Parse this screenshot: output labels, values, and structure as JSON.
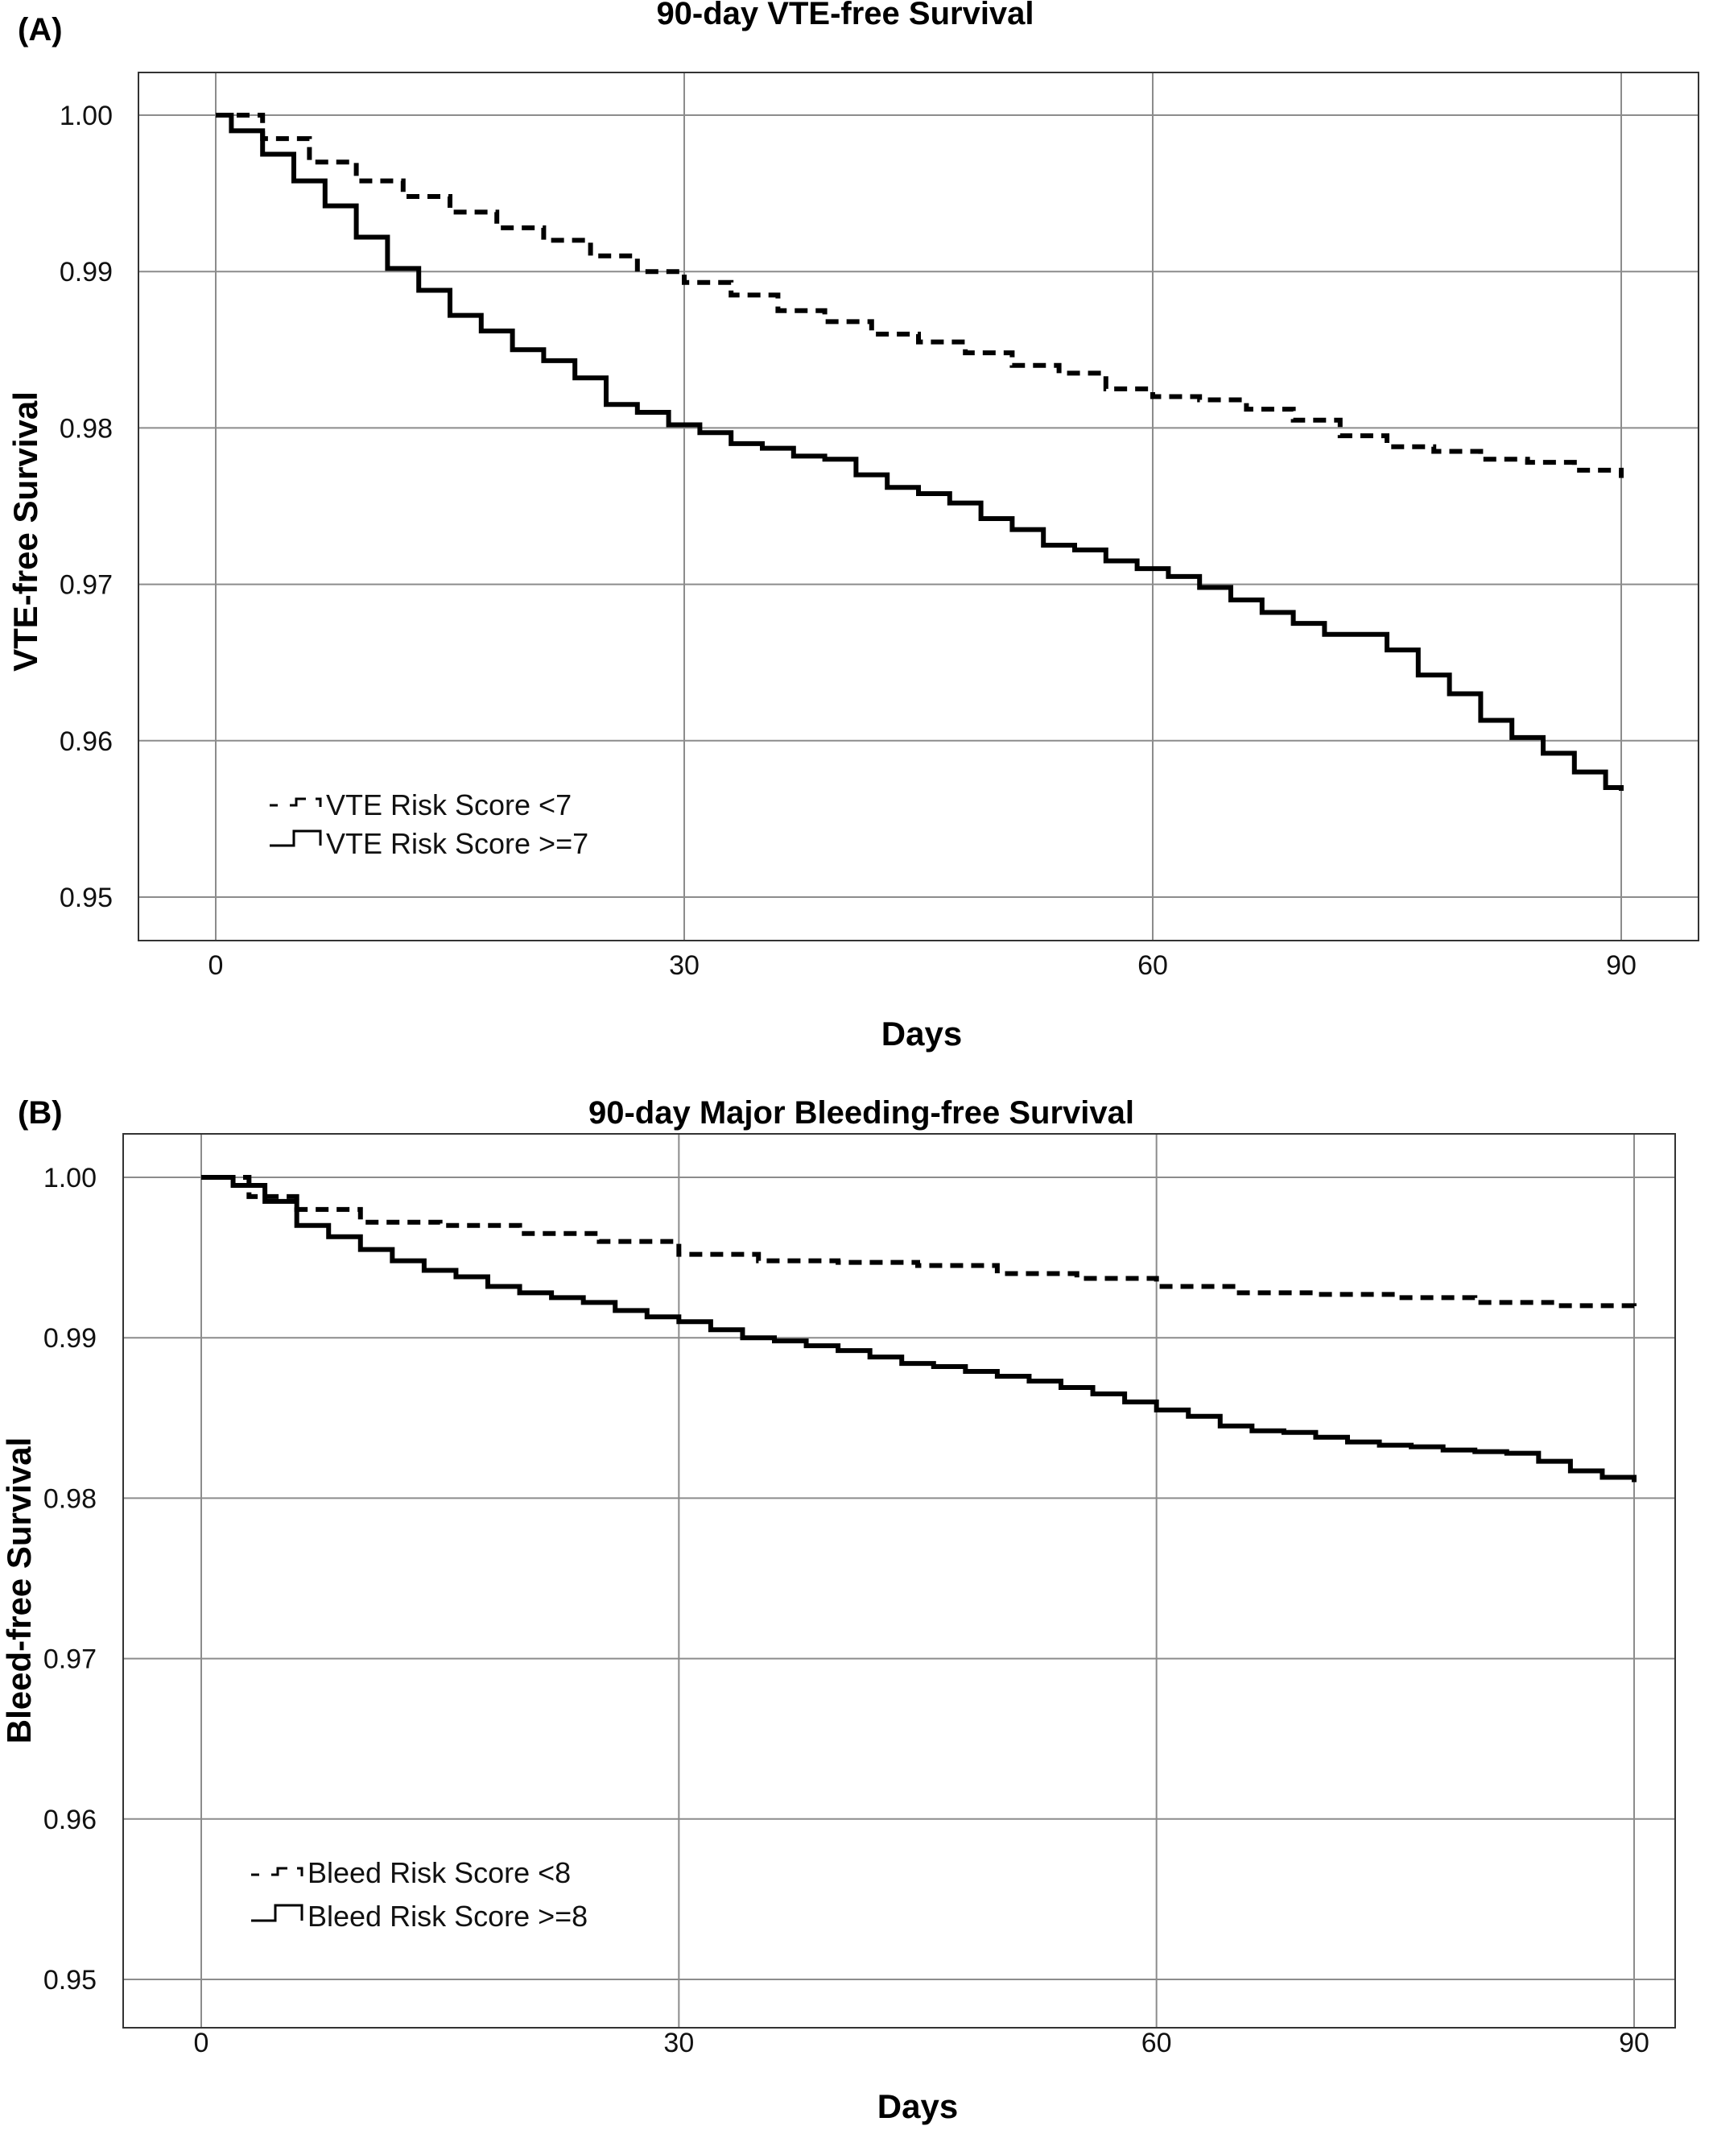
{
  "figure": {
    "panels": [
      {
        "tag": "(A)",
        "title": "90-day VTE-free Survival",
        "xlabel": "Days",
        "ylabel": "VTE-free Survival",
        "x_ticks": [
          "0",
          "30",
          "60",
          "90"
        ],
        "y_ticks": [
          "1.00",
          "0.99",
          "0.98",
          "0.97",
          "0.96",
          "0.95"
        ],
        "legend": [
          {
            "label": "VTE Risk Score <7",
            "style": "dashed"
          },
          {
            "label": "VTE Risk Score >=7",
            "style": "solid"
          }
        ]
      },
      {
        "tag": "(B)",
        "title": "90-day Major Bleeding-free Survival",
        "xlabel": "Days",
        "ylabel": "Bleed-free Survival",
        "x_ticks": [
          "0",
          "30",
          "60",
          "90"
        ],
        "y_ticks": [
          "1.00",
          "0.99",
          "0.98",
          "0.97",
          "0.96",
          "0.95"
        ],
        "legend": [
          {
            "label": "Bleed Risk Score <8",
            "style": "dashed"
          },
          {
            "label": "Bleed Risk Score >=8",
            "style": "solid"
          }
        ]
      }
    ]
  },
  "chart_data": [
    {
      "type": "line",
      "step": true,
      "title": "90-day VTE-free Survival",
      "xlabel": "Days",
      "ylabel": "VTE-free Survival",
      "xlim": [
        0,
        90
      ],
      "ylim": [
        0.95,
        1.0
      ],
      "grid": true,
      "legend_position": "bottom-left",
      "series": [
        {
          "name": "VTE Risk Score <7",
          "style": "dashed",
          "color": "#000000",
          "x": [
            0,
            3,
            6,
            9,
            12,
            15,
            18,
            21,
            24,
            27,
            30,
            33,
            36,
            39,
            42,
            45,
            48,
            51,
            54,
            57,
            60,
            63,
            66,
            69,
            72,
            75,
            78,
            81,
            84,
            87,
            90
          ],
          "y": [
            1.0,
            0.9985,
            0.997,
            0.9958,
            0.9948,
            0.9938,
            0.9928,
            0.992,
            0.991,
            0.99,
            0.9893,
            0.9885,
            0.9875,
            0.9868,
            0.986,
            0.9855,
            0.9848,
            0.984,
            0.9835,
            0.9825,
            0.982,
            0.9818,
            0.9812,
            0.9805,
            0.9795,
            0.9788,
            0.9785,
            0.978,
            0.9778,
            0.9773,
            0.9768
          ]
        },
        {
          "name": "VTE Risk Score >=7",
          "style": "solid",
          "color": "#000000",
          "x": [
            0,
            1,
            3,
            5,
            7,
            9,
            11,
            13,
            15,
            17,
            19,
            21,
            23,
            25,
            27,
            29,
            31,
            33,
            35,
            37,
            39,
            41,
            43,
            45,
            47,
            49,
            51,
            53,
            55,
            57,
            59,
            61,
            63,
            65,
            67,
            69,
            71,
            73,
            75,
            77,
            79,
            81,
            83,
            85,
            87,
            89,
            90
          ],
          "y": [
            1.0,
            0.999,
            0.9975,
            0.9958,
            0.9942,
            0.9922,
            0.9902,
            0.9888,
            0.9872,
            0.9862,
            0.985,
            0.9843,
            0.9832,
            0.9815,
            0.981,
            0.9802,
            0.9797,
            0.979,
            0.9787,
            0.9782,
            0.978,
            0.977,
            0.9762,
            0.9758,
            0.9752,
            0.9742,
            0.9735,
            0.9725,
            0.9722,
            0.9715,
            0.971,
            0.9705,
            0.9698,
            0.969,
            0.9682,
            0.9675,
            0.9668,
            0.9668,
            0.9658,
            0.9642,
            0.963,
            0.9613,
            0.9602,
            0.9592,
            0.958,
            0.957,
            0.9568
          ]
        }
      ]
    },
    {
      "type": "line",
      "step": true,
      "title": "90-day Major Bleeding-free Survival",
      "xlabel": "Days",
      "ylabel": "Bleed-free Survival",
      "xlim": [
        0,
        90
      ],
      "ylim": [
        0.95,
        1.0
      ],
      "grid": true,
      "legend_position": "bottom-left",
      "series": [
        {
          "name": "Bleed Risk Score <8",
          "style": "dashed",
          "color": "#000000",
          "x": [
            0,
            3,
            6,
            10,
            15,
            20,
            25,
            30,
            35,
            40,
            45,
            50,
            55,
            60,
            65,
            70,
            75,
            80,
            85,
            90
          ],
          "y": [
            1.0,
            0.9988,
            0.998,
            0.9972,
            0.997,
            0.9965,
            0.996,
            0.9952,
            0.9948,
            0.9947,
            0.9945,
            0.994,
            0.9937,
            0.9932,
            0.9928,
            0.9927,
            0.9925,
            0.9922,
            0.992,
            0.9918
          ]
        },
        {
          "name": "Bleed Risk Score >=8",
          "style": "solid",
          "color": "#000000",
          "x": [
            0,
            2,
            4,
            6,
            8,
            10,
            12,
            14,
            16,
            18,
            20,
            22,
            24,
            26,
            28,
            30,
            32,
            34,
            36,
            38,
            40,
            42,
            44,
            46,
            48,
            50,
            52,
            54,
            56,
            58,
            60,
            62,
            64,
            66,
            68,
            70,
            72,
            74,
            76,
            78,
            80,
            82,
            84,
            86,
            88,
            90
          ],
          "y": [
            1.0,
            0.9995,
            0.9985,
            0.997,
            0.9963,
            0.9955,
            0.9948,
            0.9942,
            0.9938,
            0.9932,
            0.9928,
            0.9925,
            0.9922,
            0.9917,
            0.9913,
            0.991,
            0.9905,
            0.99,
            0.9898,
            0.9895,
            0.9892,
            0.9888,
            0.9884,
            0.9882,
            0.9879,
            0.9876,
            0.9873,
            0.9869,
            0.9865,
            0.986,
            0.9855,
            0.9851,
            0.9845,
            0.9842,
            0.9841,
            0.9838,
            0.9835,
            0.9833,
            0.9832,
            0.983,
            0.9829,
            0.9828,
            0.9823,
            0.9817,
            0.9813,
            0.981
          ]
        }
      ]
    }
  ]
}
